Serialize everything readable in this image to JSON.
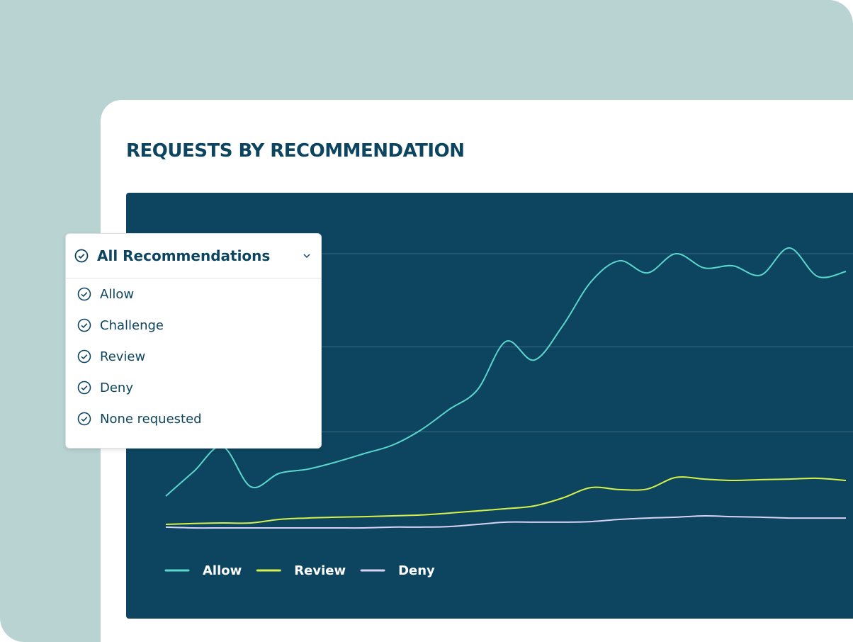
{
  "header": {
    "title": "REQUESTS BY RECOMMENDATION"
  },
  "dropdown": {
    "selected": "All Recommendations",
    "options": [
      "Allow",
      "Challenge",
      "Review",
      "Deny",
      "None requested"
    ]
  },
  "chart_data": {
    "type": "line",
    "categories": [
      null,
      null,
      null,
      null,
      null,
      null,
      null,
      null,
      null,
      null,
      null,
      null,
      null,
      null,
      null,
      null,
      null,
      null,
      null,
      null,
      null,
      null,
      null,
      null,
      null
    ],
    "ylim": [
      0,
      105
    ],
    "yticks": [
      35,
      66,
      100
    ],
    "grid": true,
    "legend": "bottom-left",
    "series": [
      {
        "name": "Allow",
        "color": "#5ad6cc",
        "values": [
          11.6,
          20.7,
          29.7,
          15.0,
          19.9,
          21.4,
          24.0,
          27.1,
          30.2,
          35.7,
          43.2,
          50.4,
          68.0,
          61.2,
          73.6,
          89.7,
          97.4,
          93.0,
          100,
          94.8,
          95.6,
          92.2,
          102.1,
          91.7,
          93.5
        ]
      },
      {
        "name": "Review",
        "color": "#d6f24a",
        "values": [
          1.3,
          1.6,
          1.8,
          1.8,
          3.1,
          3.6,
          3.9,
          4.1,
          4.4,
          4.7,
          5.4,
          6.2,
          7.0,
          8.0,
          10.9,
          14.7,
          14.0,
          14.2,
          18.4,
          17.8,
          17.3,
          17.6,
          17.8,
          18.1,
          17.3
        ]
      },
      {
        "name": "Deny",
        "color": "#d8d2f4",
        "values": [
          0.3,
          0,
          0,
          0,
          0,
          0,
          0,
          0,
          0.3,
          0.3,
          0.5,
          1.3,
          2.1,
          2.1,
          2.1,
          2.3,
          3.1,
          3.6,
          3.9,
          4.4,
          4.1,
          3.9,
          3.6,
          3.6,
          3.6
        ]
      }
    ]
  }
}
